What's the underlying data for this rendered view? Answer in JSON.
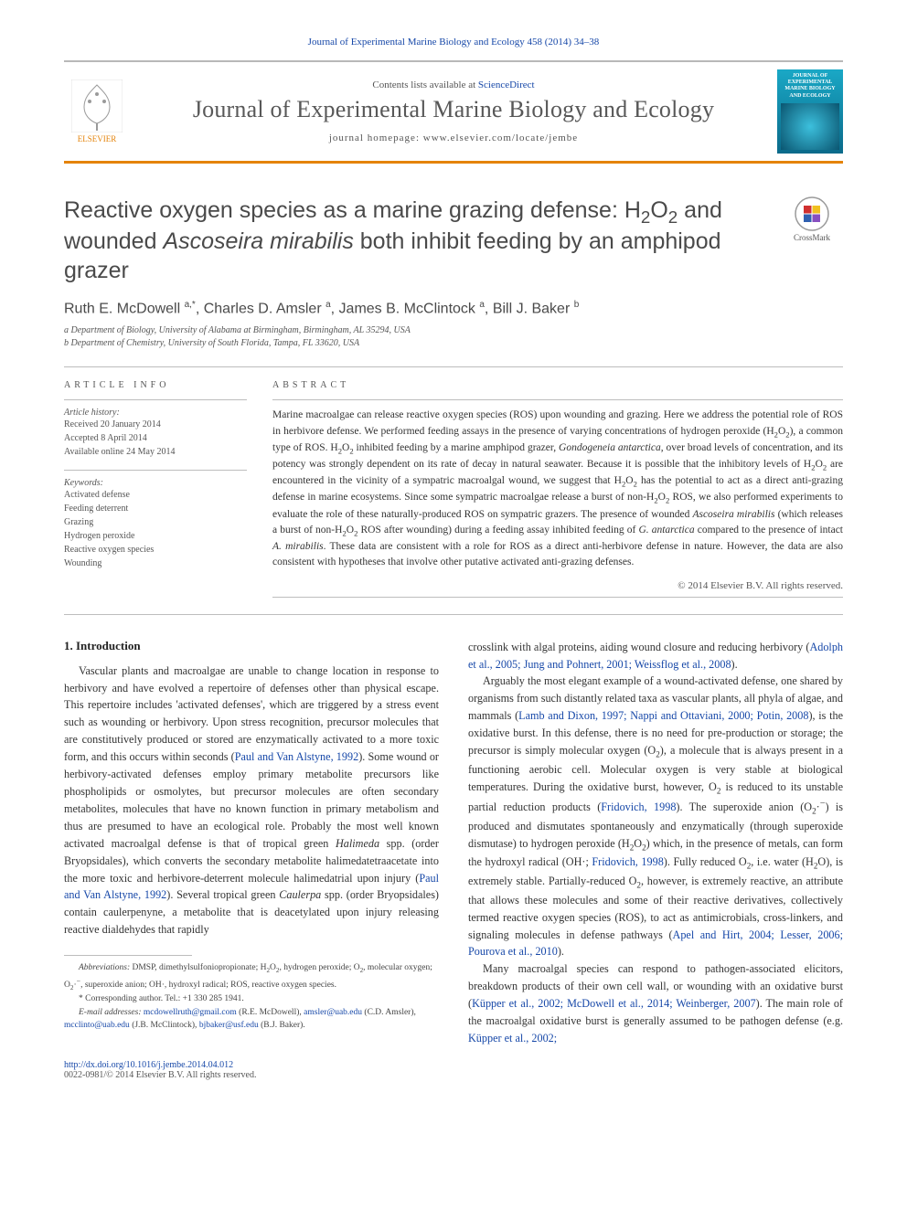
{
  "masthead": {
    "citation": "Journal of Experimental Marine Biology and Ecology 458 (2014) 34–38",
    "contents_prefix": "Contents lists available at ",
    "contents_link": "ScienceDirect",
    "journal_name": "Journal of Experimental Marine Biology and Ecology",
    "homepage_prefix": "journal homepage: ",
    "homepage_url": "www.elsevier.com/locate/jembe",
    "publisher": "ELSEVIER",
    "cover_label": "JOURNAL OF EXPERIMENTAL MARINE BIOLOGY AND ECOLOGY"
  },
  "crossmark_label": "CrossMark",
  "title_html": "Reactive oxygen species as a marine grazing defense: H<sub>2</sub>O<sub>2</sub> and wounded <i>Ascoseira mirabilis</i> both inhibit feeding by an amphipod grazer",
  "authors_html": "Ruth E. McDowell <sup>a,*</sup>, Charles D. Amsler <sup>a</sup>, James B. McClintock <sup>a</sup>, Bill J. Baker <sup>b</sup>",
  "affiliations": [
    "a Department of Biology, University of Alabama at Birmingham, Birmingham, AL 35294, USA",
    "b Department of Chemistry, University of South Florida, Tampa, FL 33620, USA"
  ],
  "article_info": {
    "heading": "ARTICLE INFO",
    "history_label": "Article history:",
    "history": [
      "Received 20 January 2014",
      "Accepted 8 April 2014",
      "Available online 24 May 2014"
    ],
    "keywords_label": "Keywords:",
    "keywords": [
      "Activated defense",
      "Feeding deterrent",
      "Grazing",
      "Hydrogen peroxide",
      "Reactive oxygen species",
      "Wounding"
    ]
  },
  "abstract": {
    "heading": "ABSTRACT",
    "text_html": "Marine macroalgae can release reactive oxygen species (ROS) upon wounding and grazing. Here we address the potential role of ROS in herbivore defense. We performed feeding assays in the presence of varying concentrations of hydrogen peroxide (H<sub>2</sub>O<sub>2</sub>), a common type of ROS. H<sub>2</sub>O<sub>2</sub> inhibited feeding by a marine amphipod grazer, <i>Gondogeneia antarctica</i>, over broad levels of concentration, and its potency was strongly dependent on its rate of decay in natural seawater. Because it is possible that the inhibitory levels of H<sub>2</sub>O<sub>2</sub> are encountered in the vicinity of a sympatric macroalgal wound, we suggest that H<sub>2</sub>O<sub>2</sub> has the potential to act as a direct anti-grazing defense in marine ecosystems. Since some sympatric macroalgae release a burst of non-H<sub>2</sub>O<sub>2</sub> ROS, we also performed experiments to evaluate the role of these naturally-produced ROS on sympatric grazers. The presence of wounded <i>Ascoseira mirabilis</i> (which releases a burst of non-H<sub>2</sub>O<sub>2</sub> ROS after wounding) during a feeding assay inhibited feeding of <i>G. antarctica</i> compared to the presence of intact <i>A. mirabilis</i>. These data are consistent with a role for ROS as a direct anti-herbivore defense in nature. However, the data are also consistent with hypotheses that involve other putative activated anti-grazing defenses.",
    "copyright": "© 2014 Elsevier B.V. All rights reserved."
  },
  "intro": {
    "heading": "1. Introduction",
    "p1_html": "Vascular plants and macroalgae are unable to change location in response to herbivory and have evolved a repertoire of defenses other than physical escape. This repertoire includes 'activated defenses', which are triggered by a stress event such as wounding or herbivory. Upon stress recognition, precursor molecules that are constitutively produced or stored are enzymatically activated to a more toxic form, and this occurs within seconds (<a href='#'>Paul and Van Alstyne, 1992</a>). Some wound or herbivory-activated defenses employ primary metabolite precursors like phospholipids or osmolytes, but precursor molecules are often secondary metabolites, molecules that have no known function in primary metabolism and thus are presumed to have an ecological role. Probably the most well known activated macroalgal defense is that of tropical green <i>Halimeda</i> spp. (order Bryopsidales), which converts the secondary metabolite halimedatetraacetate into the more toxic and herbivore-deterrent molecule halimedatrial upon injury (<a href='#'>Paul and Van Alstyne, 1992</a>). Several tropical green <i>Caulerpa</i> spp. (order Bryopsidales) contain caulerpenyne, a metabolite that is deacetylated upon injury releasing reactive dialdehydes that rapidly",
    "p2_html": "crosslink with algal proteins, aiding wound closure and reducing herbivory (<a href='#'>Adolph et al., 2005; Jung and Pohnert, 2001; Weissflog et al., 2008</a>).",
    "p3_html": "Arguably the most elegant example of a wound-activated defense, one shared by organisms from such distantly related taxa as vascular plants, all phyla of algae, and mammals (<a href='#'>Lamb and Dixon, 1997; Nappi and Ottaviani, 2000; Potin, 2008</a>), is the oxidative burst. In this defense, there is no need for pre-production or storage; the precursor is simply molecular oxygen (O<sub>2</sub>), a molecule that is always present in a functioning aerobic cell. Molecular oxygen is very stable at biological temperatures. During the oxidative burst, however, O<sub>2</sub> is reduced to its unstable partial reduction products (<a href='#'>Fridovich, 1998</a>). The superoxide anion (O<sub>2</sub>·<sup>−</sup>) is produced and dismutates spontaneously and enzymatically (through superoxide dismutase) to hydrogen peroxide (H<sub>2</sub>O<sub>2</sub>) which, in the presence of metals, can form the hydroxyl radical (OH·; <a href='#'>Fridovich, 1998</a>). Fully reduced O<sub>2</sub>, i.e. water (H<sub>2</sub>O), is extremely stable. Partially-reduced O<sub>2</sub>, however, is extremely reactive, an attribute that allows these molecules and some of their reactive derivatives, collectively termed reactive oxygen species (ROS), to act as antimicrobials, cross-linkers, and signaling molecules in defense pathways (<a href='#'>Apel and Hirt, 2004; Lesser, 2006; Pourova et al., 2010</a>).",
    "p4_html": "Many macroalgal species can respond to pathogen-associated elicitors, breakdown products of their own cell wall, or wounding with an oxidative burst (<a href='#'>Küpper et al., 2002; McDowell et al., 2014; Weinberger, 2007</a>). The main role of the macroalgal oxidative burst is generally assumed to be pathogen defense (e.g. <a href='#'>Küpper et al., 2002;</a>"
  },
  "footnotes": {
    "abbrev_html": "<i>Abbreviations:</i> DMSP, dimethylsulfoniopropionate; H<sub>2</sub>O<sub>2</sub>, hydrogen peroxide; O<sub>2</sub>, molecular oxygen; O<sub>2</sub>·<sup>−</sup>, superoxide anion; OH·, hydroxyl radical; ROS, reactive oxygen species.",
    "corresp": "* Corresponding author. Tel.: +1 330 285 1941.",
    "emails_html": "<i>E-mail addresses:</i> <a href='#'>mcdowellruth@gmail.com</a> (R.E. McDowell), <a href='#'>amsler@uab.edu</a> (C.D. Amsler), <a href='#'>mcclinto@uab.edu</a> (J.B. McClintock), <a href='#'>bjbaker@usf.edu</a> (B.J. Baker)."
  },
  "doi": {
    "url": "http://dx.doi.org/10.1016/j.jembe.2014.04.012",
    "line2": "0022-0981/© 2014 Elsevier B.V. All rights reserved."
  },
  "colors": {
    "link": "#1748a8",
    "rule_orange": "#e4830a",
    "text_body": "#333333",
    "text_muted": "#555555",
    "cover_top": "#1aa8c6",
    "cover_bottom": "#0a6a8a"
  }
}
